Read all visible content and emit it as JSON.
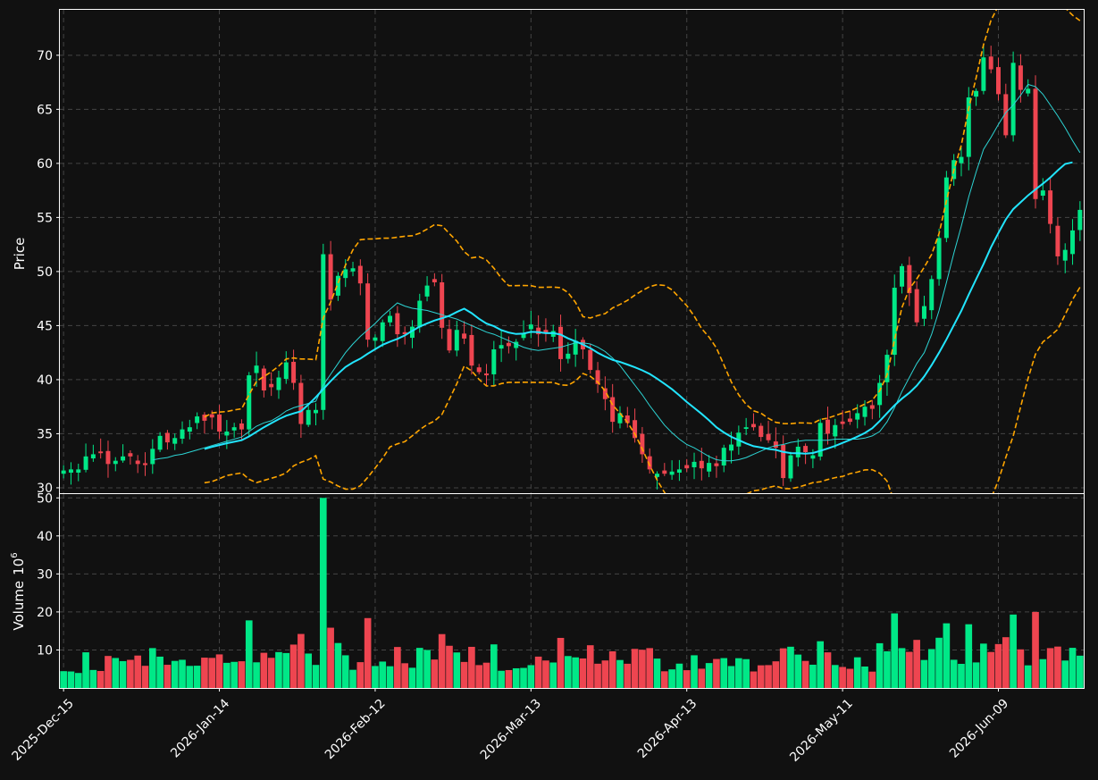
{
  "chart_data": {
    "type": "candlestick",
    "panels": {
      "price": {
        "ylabel": "Price",
        "ylim": [
          29.5,
          74.2
        ],
        "yticks": [
          30,
          35,
          40,
          45,
          50,
          55,
          60,
          65,
          70
        ]
      },
      "volume": {
        "ylabel": "Volume",
        "ylabel_exp": "6",
        "ylim": [
          0,
          51
        ],
        "yticks": [
          10,
          20,
          30,
          40,
          50
        ]
      }
    },
    "grid": true,
    "xticks": [
      "2025-Dec-15",
      "2026-Jan-14",
      "2026-Feb-12",
      "2026-Mar-13",
      "2026-Apr-13",
      "2026-May-11",
      "2026-Jun-09"
    ],
    "colors": {
      "up": "#00e887",
      "down": "#ee4550",
      "ma_slow": "#22e5ff",
      "ma_fast": "#2dd4d4",
      "bands": "#ffa500",
      "background": "#111111",
      "grid": "#444444",
      "frame": "#ffffff"
    },
    "close": [
      31.6,
      31.7,
      31.7,
      32.9,
      33.1,
      33.2,
      32.2,
      32.5,
      32.9,
      32.9,
      32.2,
      32.1,
      33.6,
      34.8,
      34.2,
      34.6,
      35.4,
      35.6,
      36.6,
      36.2,
      36.5,
      35.2,
      35.2,
      35.6,
      35.4,
      40.4,
      41.3,
      39,
      39.3,
      40.2,
      41.6,
      39.7,
      35.9,
      37.2,
      37.2,
      51.6,
      47.4,
      49.6,
      50.2,
      50.3,
      48.9,
      43.7,
      43.9,
      45.3,
      45.9,
      44.2,
      44.2,
      44.9,
      47.3,
      48.7,
      49,
      44.8,
      42.7,
      44.6,
      43.8,
      41.3,
      40.7,
      40.4,
      42.8,
      43.2,
      43.1,
      43.5,
      44.3,
      45.1,
      44.2,
      44.3,
      44.5,
      41.9,
      42.4,
      43.6,
      42.8,
      40.9,
      39.6,
      38.2,
      36.1,
      36.9,
      36,
      34.6,
      33.1,
      31.7,
      31.3,
      31.3,
      31.5,
      31.7,
      31.8,
      32.4,
      31.8,
      32.3,
      32,
      33.7,
      34,
      35.1,
      35.6,
      35.6,
      34.7,
      34.4,
      33.7,
      30.9,
      33,
      33.8,
      33.3,
      33,
      36,
      35,
      35.8,
      35.9,
      36.1,
      36.9,
      37.5,
      37.3,
      39.7,
      42.3,
      48.5,
      50.5,
      48,
      45.3,
      46.8,
      49.3,
      53.1,
      58.7,
      60.3,
      60.6,
      66.1,
      66.7,
      69.8,
      68.7,
      66.4,
      62.6,
      69.3,
      66.8,
      66.9,
      56.7,
      57.5,
      54.4,
      51.4,
      52,
      53.8,
      55.7
    ],
    "ma_fast": [
      null,
      null,
      null,
      null,
      null,
      null,
      null,
      null,
      null,
      null,
      null,
      null,
      32.57,
      32.7,
      32.8,
      33.0,
      33.1,
      33.3,
      33.5,
      33.7,
      33.9,
      34.1,
      34.3,
      34.5,
      34.7,
      35.2,
      35.7,
      36.0,
      36.2,
      36.6,
      37.1,
      37.4,
      37.6,
      37.8,
      38.0,
      39.5,
      40.5,
      41.5,
      42.5,
      43.3,
      44.0,
      44.6,
      45.2,
      45.9,
      46.5,
      47.1,
      46.8,
      46.6,
      46.5,
      46.4,
      46.2,
      46.0,
      45.8,
      45.6,
      45.3,
      45.0,
      44.7,
      44.4,
      44.2,
      43.9,
      43.6,
      43.3,
      43.0,
      42.8,
      42.7,
      42.8,
      42.9,
      43.0,
      43.2,
      43.4,
      43.4,
      43.3,
      43.0,
      42.6,
      42.0,
      41.3,
      40.4,
      39.5,
      38.6,
      37.6,
      36.7,
      35.8,
      35.1,
      34.5,
      34.0,
      33.7,
      33.3,
      32.9,
      32.6,
      32.5,
      32.5,
      32.6,
      32.8,
      33.1,
      33.4,
      33.7,
      33.9,
      34.0,
      34.2,
      34.3,
      34.4,
      34.4,
      34.4,
      34.4,
      34.5,
      34.5,
      34.5,
      34.5,
      34.6,
      34.8,
      35.2,
      36.1,
      37.4,
      38.9,
      40.2,
      41.5,
      42.5,
      44.2,
      46.4,
      49.0,
      51.7,
      54.2,
      56.9,
      59.2,
      61.3,
      62.4,
      63.6,
      64.7,
      65.4,
      66.3,
      67.3,
      67.1,
      66.4,
      65.4,
      64.4,
      63.3,
      62.1,
      61.0
    ],
    "ma_slow": [
      null,
      null,
      null,
      null,
      null,
      null,
      null,
      null,
      null,
      null,
      null,
      null,
      null,
      null,
      null,
      null,
      null,
      null,
      null,
      33.58,
      33.78,
      33.95,
      34.12,
      34.26,
      34.4,
      34.75,
      35.18,
      35.6,
      35.98,
      36.35,
      36.66,
      36.88,
      37.08,
      37.7,
      38.37,
      39.12,
      39.86,
      40.55,
      41.17,
      41.6,
      41.94,
      42.4,
      42.81,
      43.22,
      43.51,
      43.77,
      44.09,
      44.52,
      44.91,
      45.21,
      45.47,
      45.68,
      45.91,
      46.26,
      46.56,
      46.15,
      45.63,
      45.19,
      44.94,
      44.58,
      44.36,
      44.22,
      44.26,
      44.42,
      44.4,
      44.3,
      44.31,
      44.17,
      43.82,
      43.54,
      43.25,
      42.91,
      42.48,
      42.13,
      41.83,
      41.64,
      41.4,
      41.14,
      40.86,
      40.53,
      40.09,
      39.61,
      39.12,
      38.55,
      37.94,
      37.39,
      36.84,
      36.24,
      35.6,
      35.12,
      34.71,
      34.41,
      34.1,
      33.85,
      33.73,
      33.59,
      33.51,
      33.32,
      33.21,
      33.19,
      33.16,
      33.22,
      33.42,
      33.64,
      33.87,
      34.15,
      34.43,
      34.73,
      35.07,
      35.51,
      36.17,
      36.9,
      37.62,
      38.24,
      38.78,
      39.45,
      40.3,
      41.35,
      42.5,
      43.73,
      45.05,
      46.36,
      47.86,
      49.29,
      50.7,
      52.24,
      53.56,
      54.82,
      55.77,
      56.4,
      57.04,
      57.59,
      58.12,
      58.69,
      59.34,
      59.95,
      60.1
    ]
  }
}
